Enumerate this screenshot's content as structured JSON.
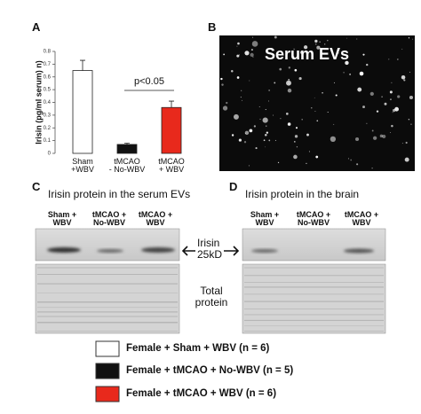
{
  "panels": {
    "A": "A",
    "B": "B",
    "C": "C",
    "D": "D"
  },
  "chart_data": {
    "type": "bar",
    "ylabel": "Irisin (pg/ml serum) n)",
    "categories": [
      "Sham\n+WBV",
      "tMCAO\n- No-WBV",
      "tMCAO\n+ WBV"
    ],
    "values": [
      0.65,
      0.07,
      0.36
    ],
    "errors": [
      0.08,
      0.01,
      0.05
    ],
    "colors": [
      "#ffffff",
      "#111111",
      "#e8291c"
    ],
    "ylim": [
      0,
      0.8
    ],
    "yticks": [
      0,
      0.1,
      0.2,
      0.3,
      0.4,
      0.5,
      0.6,
      0.7,
      0.8
    ],
    "annotation": "p<0.05"
  },
  "image_b": {
    "label": "Serum EVs"
  },
  "blot_c": {
    "title": "Irisin protein in the serum EVs",
    "lanes": [
      "Sham +\nWBV",
      "tMCAO +\nNo-WBV",
      "tMCAO +\nWBV"
    ]
  },
  "blot_d": {
    "title": "Irisin protein in the brain",
    "lanes": [
      "Sham +\nWBV",
      "tMCAO +\nNo-WBV",
      "tMCAO +\nWBV"
    ]
  },
  "blot_labels": {
    "band": "Irisin\n25kD",
    "total": "Total\nprotein"
  },
  "legend": [
    "Female + Sham + WBV (n = 6)",
    "Female + tMCAO + No-WBV (n = 5)",
    "Female + tMCAO + WBV (n = 6)"
  ]
}
